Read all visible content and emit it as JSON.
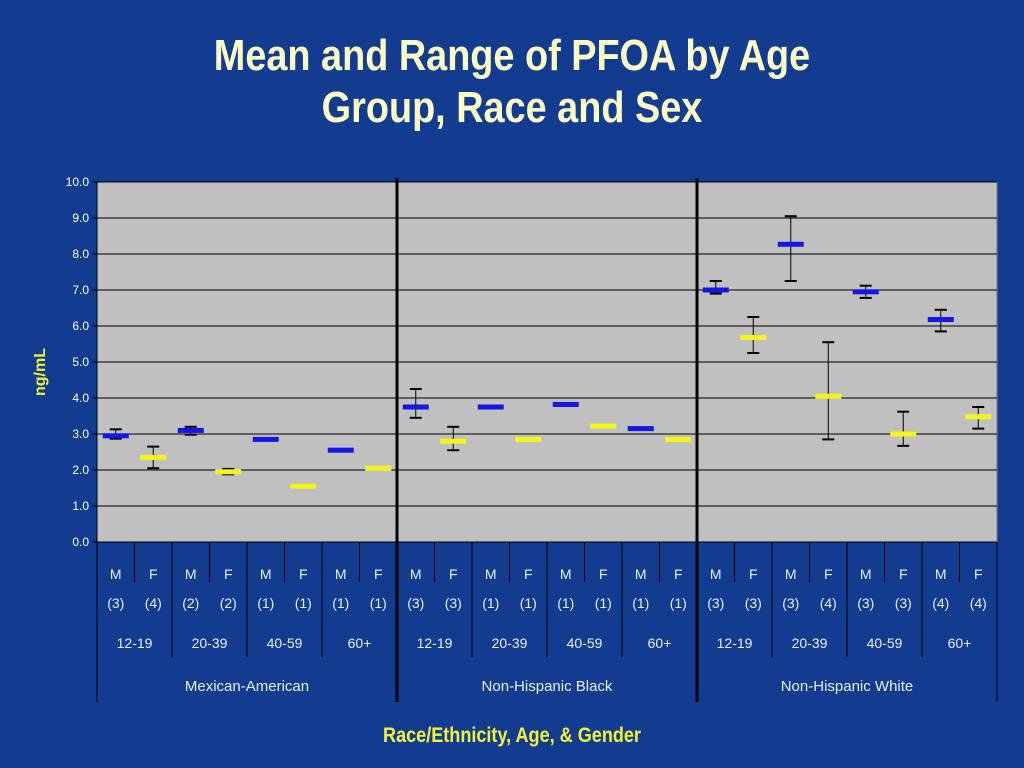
{
  "title_lines": [
    "Mean and Range of PFOA by Age",
    "Group, Race and Sex"
  ],
  "chart_data": {
    "type": "scatter",
    "title": "Mean and Range of PFOA by Age Group, Race and Sex",
    "ylabel": "ng/mL",
    "xlabel": "Race/Ethnicity, Age, & Gender",
    "ylim": [
      0,
      10
    ],
    "yticks": [
      "0.0",
      "1.0",
      "2.0",
      "3.0",
      "4.0",
      "5.0",
      "6.0",
      "7.0",
      "8.0",
      "9.0",
      "10.0"
    ],
    "grid": true,
    "colors": {
      "male": "#1515e6",
      "female": "#f5f51a",
      "error_bar": "#000000",
      "plot_bg": "#c0c0c0"
    },
    "groups": [
      {
        "race": "Mexican-American",
        "ages": [
          {
            "age": "12-19",
            "bars": [
              {
                "sex": "M",
                "n": "(3)",
                "mean": 2.95,
                "low": 2.87,
                "high": 3.13
              },
              {
                "sex": "F",
                "n": "(4)",
                "mean": 2.35,
                "low": 2.05,
                "high": 2.65
              }
            ]
          },
          {
            "age": "20-39",
            "bars": [
              {
                "sex": "M",
                "n": "(2)",
                "mean": 3.1,
                "low": 2.98,
                "high": 3.2
              },
              {
                "sex": "F",
                "n": "(2)",
                "mean": 1.95,
                "low": 1.88,
                "high": 2.03
              }
            ]
          },
          {
            "age": "40-59",
            "bars": [
              {
                "sex": "M",
                "n": "(1)",
                "mean": 2.85,
                "low": null,
                "high": null
              },
              {
                "sex": "F",
                "n": "(1)",
                "mean": 1.55,
                "low": null,
                "high": null
              }
            ]
          },
          {
            "age": "60+",
            "bars": [
              {
                "sex": "M",
                "n": "(1)",
                "mean": 2.55,
                "low": null,
                "high": null
              },
              {
                "sex": "F",
                "n": "(1)",
                "mean": 2.05,
                "low": null,
                "high": null
              }
            ]
          }
        ]
      },
      {
        "race": "Non-Hispanic Black",
        "ages": [
          {
            "age": "12-19",
            "bars": [
              {
                "sex": "M",
                "n": "(3)",
                "mean": 3.75,
                "low": 3.45,
                "high": 4.25
              },
              {
                "sex": "F",
                "n": "(3)",
                "mean": 2.8,
                "low": 2.55,
                "high": 3.2
              }
            ]
          },
          {
            "age": "20-39",
            "bars": [
              {
                "sex": "M",
                "n": "(1)",
                "mean": 3.75,
                "low": null,
                "high": null
              },
              {
                "sex": "F",
                "n": "(1)",
                "mean": 2.85,
                "low": null,
                "high": null
              }
            ]
          },
          {
            "age": "40-59",
            "bars": [
              {
                "sex": "M",
                "n": "(1)",
                "mean": 3.82,
                "low": null,
                "high": null
              },
              {
                "sex": "F",
                "n": "(1)",
                "mean": 3.22,
                "low": null,
                "high": null
              }
            ]
          },
          {
            "age": "60+",
            "bars": [
              {
                "sex": "M",
                "n": "(1)",
                "mean": 3.15,
                "low": null,
                "high": null
              },
              {
                "sex": "F",
                "n": "(1)",
                "mean": 2.85,
                "low": null,
                "high": null
              }
            ]
          }
        ]
      },
      {
        "race": "Non-Hispanic White",
        "ages": [
          {
            "age": "12-19",
            "bars": [
              {
                "sex": "M",
                "n": "(3)",
                "mean": 7.0,
                "low": 6.9,
                "high": 7.25
              },
              {
                "sex": "F",
                "n": "(3)",
                "mean": 5.68,
                "low": 5.25,
                "high": 6.25
              }
            ]
          },
          {
            "age": "20-39",
            "bars": [
              {
                "sex": "M",
                "n": "(3)",
                "mean": 8.27,
                "low": 7.25,
                "high": 9.05
              },
              {
                "sex": "F",
                "n": "(4)",
                "mean": 4.05,
                "low": 2.85,
                "high": 5.55
              }
            ]
          },
          {
            "age": "40-59",
            "bars": [
              {
                "sex": "M",
                "n": "(3)",
                "mean": 6.95,
                "low": 6.78,
                "high": 7.12
              },
              {
                "sex": "F",
                "n": "(3)",
                "mean": 3.0,
                "low": 2.67,
                "high": 3.62
              }
            ]
          },
          {
            "age": "60+",
            "bars": [
              {
                "sex": "M",
                "n": "(4)",
                "mean": 6.18,
                "low": 5.85,
                "high": 6.45
              },
              {
                "sex": "F",
                "n": "(4)",
                "mean": 3.48,
                "low": 3.15,
                "high": 3.75
              }
            ]
          }
        ]
      }
    ]
  }
}
